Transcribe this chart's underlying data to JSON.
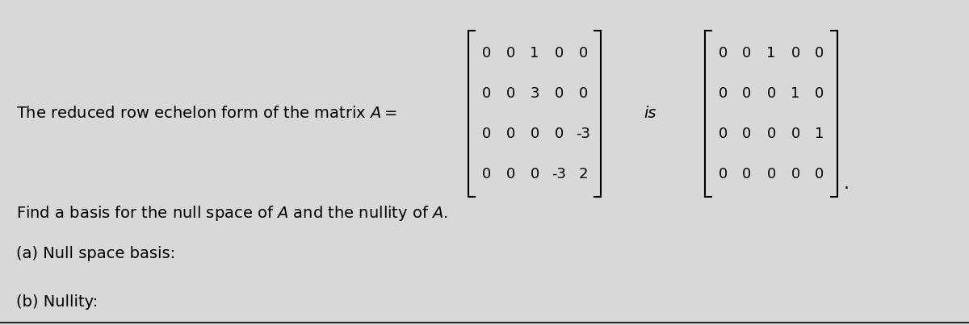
{
  "bg_color": "#d8d8d8",
  "text_color": "#000000",
  "title_text": "The reduced row echelon form of the matrix $A=$",
  "matrix_A": [
    [
      "0",
      "0",
      "1",
      "0",
      "0"
    ],
    [
      "0",
      "0",
      "3",
      "0",
      "0"
    ],
    [
      "0",
      "0",
      "0",
      "0",
      "-3"
    ],
    [
      "0",
      "0",
      "0",
      "-3",
      "2"
    ]
  ],
  "matrix_B": [
    [
      "0",
      "0",
      "1",
      "0",
      "0"
    ],
    [
      "0",
      "0",
      "0",
      "1",
      "0"
    ],
    [
      "0",
      "0",
      "0",
      "0",
      "1"
    ],
    [
      "0",
      "0",
      "0",
      "0",
      "0"
    ]
  ],
  "is_text": "is",
  "find_text": "Find a basis for the null space of $A$ and the nullity of $A$.",
  "part_a_text": "(a) Null space basis:",
  "part_b_text": "(b) Nullity:",
  "font_size_main": 14,
  "font_size_matrix": 13
}
